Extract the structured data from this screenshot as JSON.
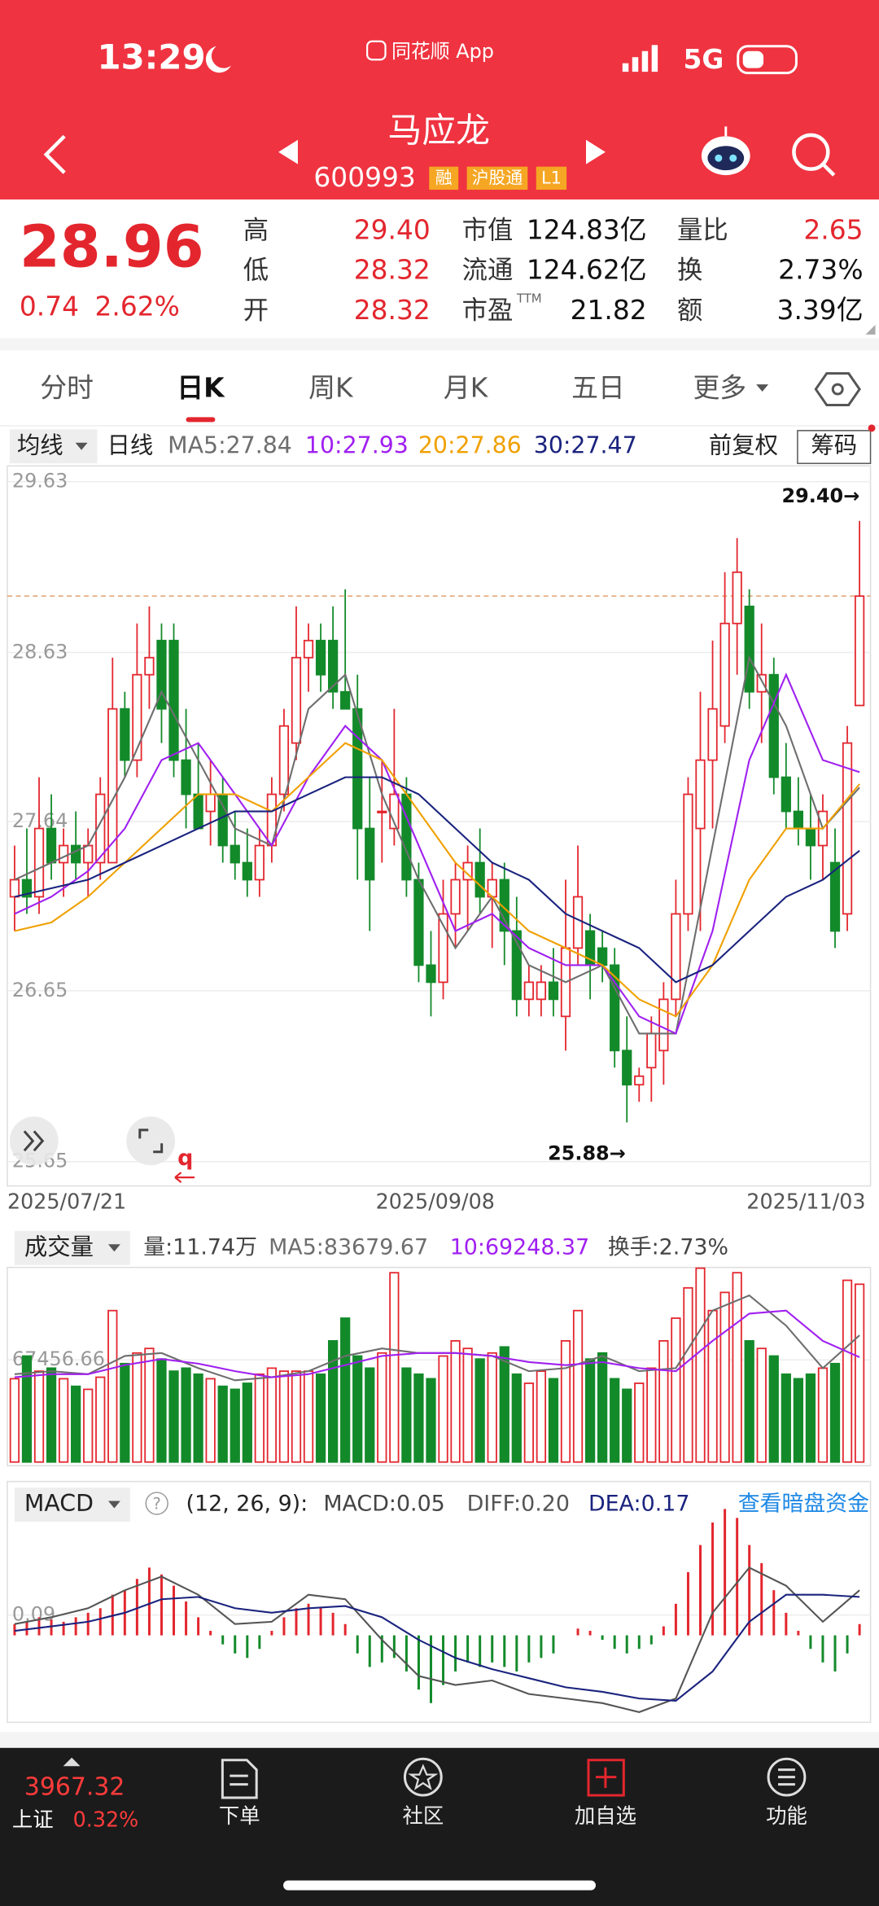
{
  "status_bar": {
    "time": "13:29",
    "app": "同花顺 App",
    "network": "5G"
  },
  "header": {
    "title": "马应龙",
    "code": "600993",
    "tags": [
      "融",
      "沪股通",
      "L1"
    ]
  },
  "quote": {
    "price": "28.96",
    "change": "0.74",
    "change_pct": "2.62%",
    "stats": [
      {
        "label": "高",
        "value": "29.40"
      },
      {
        "label": "低",
        "value": "28.32"
      },
      {
        "label": "开",
        "value": "28.32"
      },
      {
        "label": "市值",
        "value": "124.83亿"
      },
      {
        "label": "流通",
        "value": "124.62亿"
      },
      {
        "label": "市盈",
        "sup": "TTM",
        "value": "21.82"
      },
      {
        "label": "量比",
        "value": "2.65"
      },
      {
        "label": "换",
        "value": "2.73%"
      },
      {
        "label": "额",
        "value": "3.39亿"
      }
    ]
  },
  "tabs": {
    "items": [
      "分时",
      "日K",
      "周K",
      "月K",
      "五日",
      "更多"
    ],
    "active": 1
  },
  "price_chart": {
    "type": "candlestick",
    "indicator": "均线",
    "period": "日线",
    "adjust": "前复权",
    "chips": "筹码",
    "ylim": [
      25.65,
      29.63
    ],
    "yticks": [
      29.63,
      28.63,
      27.64,
      26.65,
      25.65
    ],
    "dates": [
      "2025/07/21",
      "2025/09/08",
      "2025/11/03"
    ],
    "high_label": "29.40→",
    "low_label": "25.88→",
    "mark": "q",
    "candles": [
      [
        27.2,
        27.5,
        27.0,
        27.3
      ],
      [
        27.3,
        27.6,
        27.1,
        27.2
      ],
      [
        27.2,
        27.9,
        27.1,
        27.6
      ],
      [
        27.6,
        27.8,
        27.3,
        27.4
      ],
      [
        27.4,
        27.6,
        27.2,
        27.5
      ],
      [
        27.5,
        27.7,
        27.3,
        27.4
      ],
      [
        27.4,
        27.6,
        27.2,
        27.5
      ],
      [
        27.4,
        27.9,
        27.3,
        27.8
      ],
      [
        27.4,
        28.6,
        27.4,
        28.3
      ],
      [
        28.3,
        28.4,
        27.9,
        28.0
      ],
      [
        28.0,
        28.8,
        27.9,
        28.5
      ],
      [
        28.5,
        28.9,
        28.3,
        28.6
      ],
      [
        28.7,
        28.8,
        28.1,
        28.3
      ],
      [
        28.7,
        28.8,
        27.9,
        28.0
      ],
      [
        28.0,
        28.3,
        27.6,
        27.8
      ],
      [
        27.8,
        28.1,
        27.6,
        27.6
      ],
      [
        27.7,
        28.0,
        27.5,
        27.8
      ],
      [
        27.8,
        27.9,
        27.4,
        27.5
      ],
      [
        27.5,
        27.7,
        27.3,
        27.4
      ],
      [
        27.4,
        27.6,
        27.2,
        27.3
      ],
      [
        27.3,
        27.6,
        27.2,
        27.5
      ],
      [
        27.5,
        27.9,
        27.4,
        27.8
      ],
      [
        27.8,
        28.3,
        27.7,
        28.2
      ],
      [
        28.1,
        28.9,
        28.0,
        28.6
      ],
      [
        28.6,
        28.8,
        28.4,
        28.7
      ],
      [
        28.7,
        28.8,
        28.4,
        28.5
      ],
      [
        28.7,
        28.9,
        28.3,
        28.4
      ],
      [
        28.4,
        29.0,
        28.3,
        28.3
      ],
      [
        28.3,
        28.5,
        27.3,
        27.6
      ],
      [
        27.6,
        27.9,
        27.0,
        27.3
      ],
      [
        27.7,
        28.0,
        27.4,
        27.7
      ],
      [
        27.6,
        28.3,
        27.5,
        27.8
      ],
      [
        27.8,
        27.9,
        27.2,
        27.3
      ],
      [
        27.3,
        27.4,
        26.7,
        26.8
      ],
      [
        26.8,
        27.0,
        26.5,
        26.7
      ],
      [
        26.7,
        27.3,
        26.6,
        27.1
      ],
      [
        27.1,
        27.4,
        26.9,
        27.3
      ],
      [
        27.3,
        27.5,
        27.0,
        27.4
      ],
      [
        27.4,
        27.6,
        27.1,
        27.2
      ],
      [
        27.2,
        27.4,
        26.9,
        27.3
      ],
      [
        27.3,
        27.4,
        26.8,
        27.0
      ],
      [
        27.0,
        27.2,
        26.5,
        26.6
      ],
      [
        26.6,
        26.8,
        26.5,
        26.7
      ],
      [
        26.6,
        26.8,
        26.5,
        26.7
      ],
      [
        26.7,
        26.9,
        26.5,
        26.6
      ],
      [
        26.5,
        27.3,
        26.3,
        26.9
      ],
      [
        26.9,
        27.5,
        26.8,
        27.2
      ],
      [
        27.0,
        27.1,
        26.6,
        26.8
      ],
      [
        26.9,
        27.0,
        26.7,
        26.8
      ],
      [
        26.8,
        26.9,
        26.2,
        26.3
      ],
      [
        26.3,
        26.5,
        25.88,
        26.1
      ],
      [
        26.1,
        26.2,
        26.0,
        26.15
      ],
      [
        26.2,
        26.5,
        26.0,
        26.4
      ],
      [
        26.3,
        26.7,
        26.1,
        26.6
      ],
      [
        26.6,
        27.3,
        26.5,
        27.1
      ],
      [
        27.1,
        27.9,
        27.0,
        27.8
      ],
      [
        27.6,
        28.4,
        27.0,
        28.0
      ],
      [
        28.0,
        28.7,
        27.6,
        28.3
      ],
      [
        28.2,
        29.1,
        28.1,
        28.8
      ],
      [
        28.8,
        29.3,
        28.5,
        29.1
      ],
      [
        28.9,
        29.0,
        28.3,
        28.4
      ],
      [
        28.4,
        28.8,
        28.1,
        28.5
      ],
      [
        28.5,
        28.6,
        27.8,
        27.9
      ],
      [
        27.9,
        28.1,
        27.6,
        27.7
      ],
      [
        27.7,
        27.9,
        27.5,
        27.6
      ],
      [
        27.6,
        27.8,
        27.3,
        27.5
      ],
      [
        27.5,
        27.8,
        27.3,
        27.7
      ],
      [
        27.4,
        27.6,
        26.9,
        27.0
      ],
      [
        27.1,
        28.2,
        27.0,
        28.1
      ],
      [
        28.32,
        29.4,
        28.32,
        28.96
      ]
    ],
    "x": [
      0,
      3,
      6,
      9,
      12,
      15,
      18,
      21,
      24,
      27,
      30,
      33,
      36,
      39,
      42,
      45,
      48,
      51,
      54,
      57,
      60,
      63,
      66,
      69
    ],
    "series": [
      {
        "name": "MA5:27.84",
        "color": "#6e6e6e",
        "values": [
          27.3,
          27.4,
          27.5,
          27.9,
          28.4,
          28.0,
          27.6,
          27.5,
          28.3,
          28.5,
          27.8,
          27.3,
          26.9,
          27.2,
          26.8,
          26.7,
          26.8,
          26.4,
          26.4,
          27.5,
          28.6,
          28.2,
          27.6,
          27.84
        ]
      },
      {
        "name": "10:27.93",
        "color": "#a020f0",
        "values": [
          27.1,
          27.2,
          27.35,
          27.6,
          28.0,
          28.1,
          27.8,
          27.5,
          27.9,
          28.2,
          28.0,
          27.5,
          27.0,
          27.1,
          26.9,
          26.8,
          26.8,
          26.5,
          26.4,
          27.0,
          28.0,
          28.5,
          28.0,
          27.93
        ]
      },
      {
        "name": "20:27.86",
        "color": "#f0a000",
        "values": [
          27.0,
          27.05,
          27.2,
          27.4,
          27.6,
          27.8,
          27.8,
          27.7,
          27.9,
          28.1,
          28.0,
          27.7,
          27.4,
          27.2,
          27.0,
          26.9,
          26.8,
          26.6,
          26.5,
          26.8,
          27.3,
          27.6,
          27.6,
          27.86
        ]
      },
      {
        "name": "30:27.47",
        "color": "#1a237e",
        "values": [
          27.2,
          27.25,
          27.3,
          27.4,
          27.5,
          27.6,
          27.7,
          27.7,
          27.8,
          27.9,
          27.9,
          27.8,
          27.6,
          27.4,
          27.3,
          27.1,
          27.0,
          26.9,
          26.7,
          26.8,
          27.0,
          27.2,
          27.3,
          27.47
        ]
      }
    ]
  },
  "volume": {
    "type": "bar",
    "label": "成交量",
    "info": "量:11.74万",
    "ylim": [
      0,
      128500
    ],
    "yticks": [
      67456.66
    ],
    "values": [
      55000,
      70000,
      60000,
      62000,
      55000,
      50000,
      48000,
      56000,
      100000,
      65000,
      72000,
      75000,
      68000,
      60000,
      62000,
      58000,
      55000,
      50000,
      48000,
      52000,
      58000,
      62000,
      60000,
      60000,
      60000,
      58000,
      80000,
      95000,
      70000,
      62000,
      72000,
      125000,
      62000,
      58000,
      55000,
      70000,
      80000,
      75000,
      68000,
      72000,
      76000,
      58000,
      52000,
      60000,
      55000,
      80000,
      100000,
      68000,
      72000,
      55000,
      48000,
      52000,
      62000,
      80000,
      95000,
      115000,
      128000,
      100000,
      112000,
      125000,
      80000,
      75000,
      70000,
      58000,
      55000,
      58000,
      62000,
      65000,
      120000,
      117400
    ],
    "series": [
      {
        "name": "MA5:83679.67",
        "color": "#6e6e6e",
        "values": [
          58000,
          60000,
          58000,
          70000,
          72000,
          62000,
          54000,
          56000,
          60000,
          70000,
          75000,
          72000,
          72000,
          70000,
          60000,
          62000,
          70000,
          60000,
          62000,
          100000,
          110000,
          90000,
          62000,
          83679.67
        ]
      },
      {
        "name": "10:69248.37",
        "color": "#a020f0",
        "values": [
          56000,
          58000,
          58000,
          64000,
          68000,
          65000,
          60000,
          56000,
          58000,
          64000,
          70000,
          72000,
          72000,
          70000,
          66000,
          64000,
          66000,
          62000,
          60000,
          80000,
          98000,
          100000,
          80000,
          69248.37
        ]
      }
    ],
    "turnover": "换手:2.73%"
  },
  "macd": {
    "type": "bar",
    "label": "MACD",
    "help": "?",
    "params": "(12, 26, 9):",
    "link": "查看暗盘资金",
    "ylim": [
      -0.38,
      0.66
    ],
    "yticks": [
      0.09
    ],
    "values": [
      0.05,
      0.06,
      0.08,
      0.07,
      0.06,
      0.08,
      0.1,
      0.12,
      0.18,
      0.2,
      0.25,
      0.3,
      0.27,
      0.22,
      0.15,
      0.08,
      0.02,
      -0.04,
      -0.08,
      -0.1,
      -0.06,
      0.02,
      0.08,
      0.12,
      0.14,
      0.12,
      0.1,
      0.05,
      -0.08,
      -0.14,
      -0.12,
      -0.1,
      -0.16,
      -0.24,
      -0.3,
      -0.22,
      -0.16,
      -0.12,
      -0.14,
      -0.12,
      -0.14,
      -0.16,
      -0.12,
      -0.1,
      -0.08,
      0.0,
      0.03,
      0.02,
      -0.02,
      -0.06,
      -0.08,
      -0.06,
      -0.04,
      0.04,
      0.14,
      0.28,
      0.4,
      0.5,
      0.56,
      0.52,
      0.4,
      0.32,
      0.2,
      0.1,
      0.02,
      -0.06,
      -0.12,
      -0.16,
      -0.08,
      0.05
    ],
    "value_label": "MACD:0.05",
    "series": [
      {
        "name": "DIFF:0.20",
        "color": "#555555",
        "values": [
          0.05,
          0.08,
          0.12,
          0.2,
          0.26,
          0.18,
          0.05,
          0.06,
          0.18,
          0.16,
          -0.02,
          -0.18,
          -0.22,
          -0.2,
          -0.26,
          -0.28,
          -0.3,
          -0.34,
          -0.28,
          0.1,
          0.3,
          0.22,
          0.06,
          0.2
        ]
      },
      {
        "name": "DEA:0.17",
        "color": "#1a237e",
        "values": [
          0.02,
          0.04,
          0.06,
          0.1,
          0.16,
          0.17,
          0.12,
          0.1,
          0.12,
          0.13,
          0.08,
          -0.02,
          -0.1,
          -0.15,
          -0.19,
          -0.23,
          -0.25,
          -0.28,
          -0.29,
          -0.16,
          0.06,
          0.18,
          0.18,
          0.17
        ]
      }
    ]
  },
  "bottom_bar": {
    "index_value": "3967.32",
    "index_name": "上证",
    "index_pct": "0.32%",
    "buttons": [
      "下单",
      "社区",
      "加自选",
      "功能"
    ]
  }
}
